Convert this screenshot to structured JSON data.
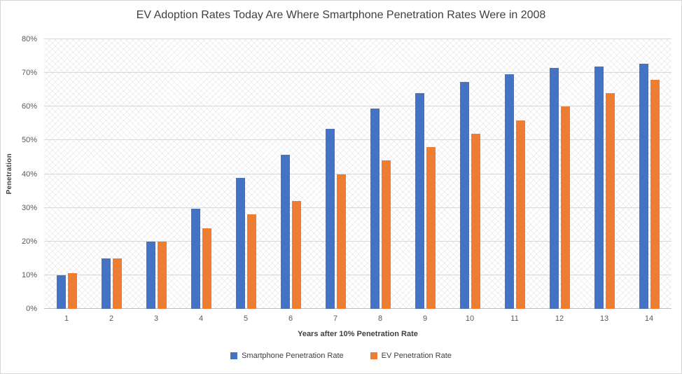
{
  "chart_data": {
    "type": "bar",
    "title": "EV Adoption Rates Today Are Where Smartphone Penetration Rates Were in 2008",
    "xlabel": "Years after 10% Penetration Rate",
    "ylabel": "Penetration",
    "categories": [
      "1",
      "2",
      "3",
      "4",
      "5",
      "6",
      "7",
      "8",
      "9",
      "10",
      "11",
      "12",
      "13",
      "14"
    ],
    "series": [
      {
        "name": "Smartphone Penetration Rate",
        "key": "smartphone",
        "color": "#4472C4",
        "values": [
          10,
          15,
          20,
          29.8,
          38.8,
          45.7,
          53.5,
          59.4,
          64,
          67.4,
          69.6,
          71.4,
          72,
          72.7
        ]
      },
      {
        "name": "EV Penetration Rate",
        "key": "ev",
        "color": "#ED7D31",
        "values": [
          10.7,
          15,
          20,
          24,
          28,
          32,
          40,
          44,
          48,
          52,
          56,
          60,
          64,
          68
        ]
      }
    ],
    "ylim": [
      0,
      80
    ],
    "ytick_step": 10,
    "ytick_suffix": "%",
    "grid": true,
    "legend_position": "bottom",
    "colors": {
      "grid": "#D9D9D9",
      "axis": "#BDBDBD",
      "tick_text": "#595959",
      "title_text": "#404040"
    }
  }
}
